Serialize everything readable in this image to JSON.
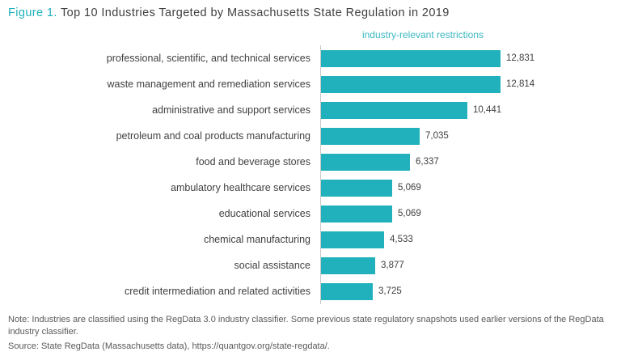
{
  "title": {
    "prefix": "Figure 1.",
    "text": " Top 10 Industries Targeted by Massachusetts State Regulation in 2019"
  },
  "chart_data": {
    "type": "bar",
    "orientation": "horizontal",
    "title": "Top 10 Industries Targeted by Massachusetts State Regulation in 2019",
    "axis_title": "industry-relevant restrictions",
    "categories": [
      "professional, scientific, and technical services",
      "waste management and remediation services",
      "administrative and support services",
      "petroleum and coal products manufacturing",
      "food and beverage stores",
      "ambulatory healthcare services",
      "educational services",
      "chemical manufacturing",
      "social assistance",
      "credit intermediation and related activities"
    ],
    "values": [
      12831,
      12814,
      10441,
      7035,
      6337,
      5069,
      5069,
      4533,
      3877,
      3725
    ],
    "value_labels": [
      "12,831",
      "12,814",
      "10,441",
      "7,035",
      "6,337",
      "5,069",
      "5,069",
      "4,533",
      "3,877",
      "3,725"
    ],
    "xlim": [
      0,
      13000
    ],
    "grid": false,
    "legend": "none",
    "bar_color": "#20b1bc"
  },
  "notes": {
    "note": "Note: Industries are classified using the RegData 3.0 industry classifier. Some previous state regulatory snapshots used earlier versions of the RegData industry classifier.",
    "source": "Source: State RegData (Massachusetts data), https://quantgov.org/state-regdata/."
  }
}
